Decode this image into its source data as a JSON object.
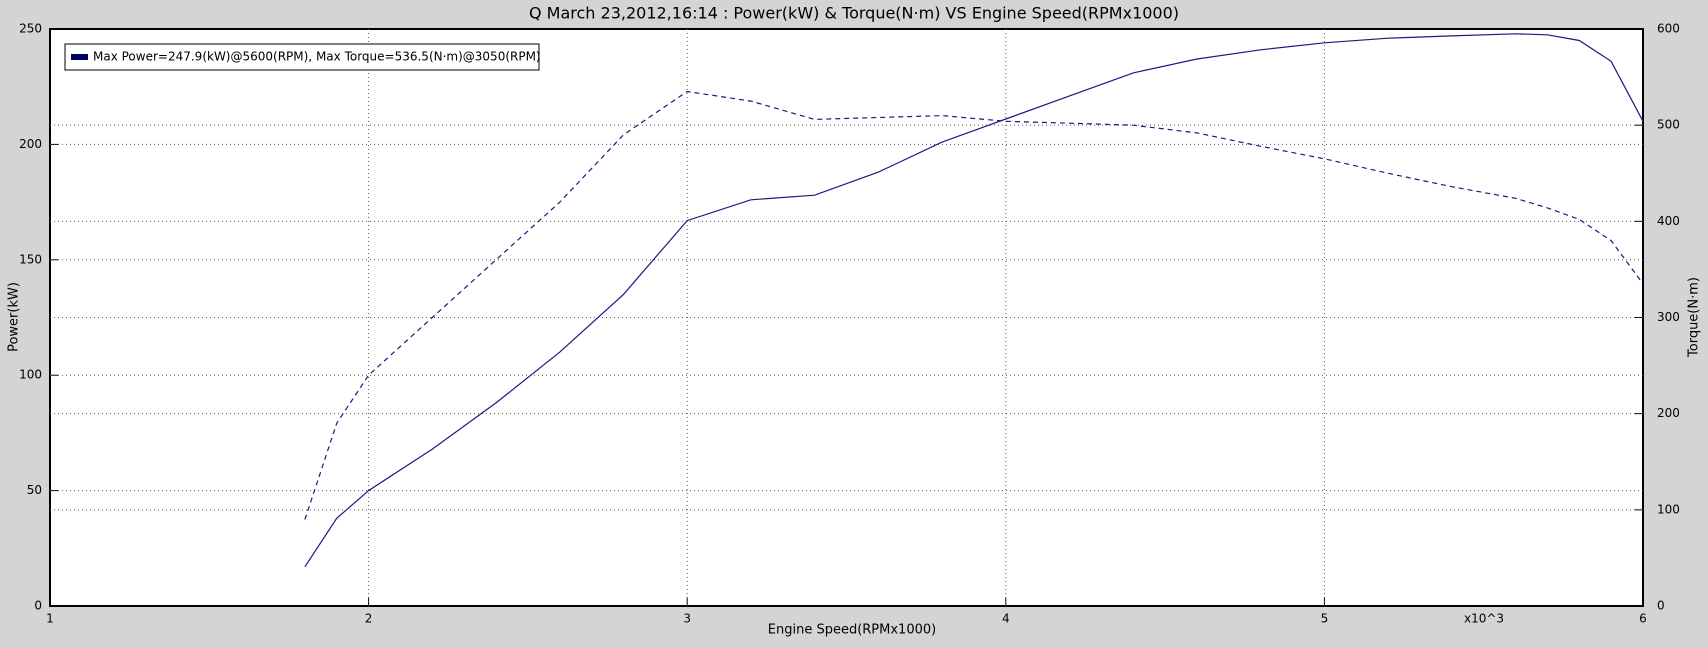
{
  "chart_data": {
    "type": "line",
    "title": "Q March 23,2012,16:14  : Power(kW) & Torque(N·m) VS Engine Speed(RPMx1000)",
    "x_label": "Engine Speed(RPMx1000)",
    "y_label": "Power(kW)",
    "y2_label": "Torque(N·m)",
    "x_multiplier": "x10^3",
    "legend_text": "Max Power=247.9(kW)@5600(RPM), Max Torque=536.5(N·m)@3050(RPM)",
    "legend_color": "#000066",
    "x": [
      1.8,
      1.9,
      2.0,
      2.2,
      2.4,
      2.6,
      2.8,
      3.0,
      3.2,
      3.4,
      3.6,
      3.8,
      4.0,
      4.2,
      4.4,
      4.6,
      4.8,
      5.0,
      5.2,
      5.4,
      5.6,
      5.7,
      5.8,
      5.9,
      6.0
    ],
    "series": [
      {
        "color": "#1a1a80",
        "dash": false,
        "values": [
          17,
          38,
          50,
          68,
          88,
          110,
          135,
          167,
          176,
          178,
          188,
          201,
          211,
          221,
          231,
          237,
          241,
          244,
          246,
          247,
          247.9,
          247.5,
          245,
          236,
          210
        ]
      },
      {
        "color": "#1a1a80",
        "dash": true,
        "axis": "y2",
        "values": [
          90,
          190,
          240,
          300,
          360,
          420,
          490,
          535,
          525,
          506,
          508,
          510,
          504,
          502,
          500,
          492,
          478,
          465,
          450,
          436,
          424,
          414,
          402,
          380,
          335
        ]
      }
    ],
    "xlim": [
      1,
      6
    ],
    "xticks": [
      1,
      2,
      3,
      4,
      5,
      6
    ],
    "ylim": [
      0,
      250
    ],
    "yticks": [
      0,
      50,
      100,
      150,
      200,
      250
    ],
    "y2lim": [
      0,
      600
    ],
    "y2ticks": [
      0,
      100,
      200,
      300,
      400,
      500,
      600
    ],
    "grid": true
  }
}
